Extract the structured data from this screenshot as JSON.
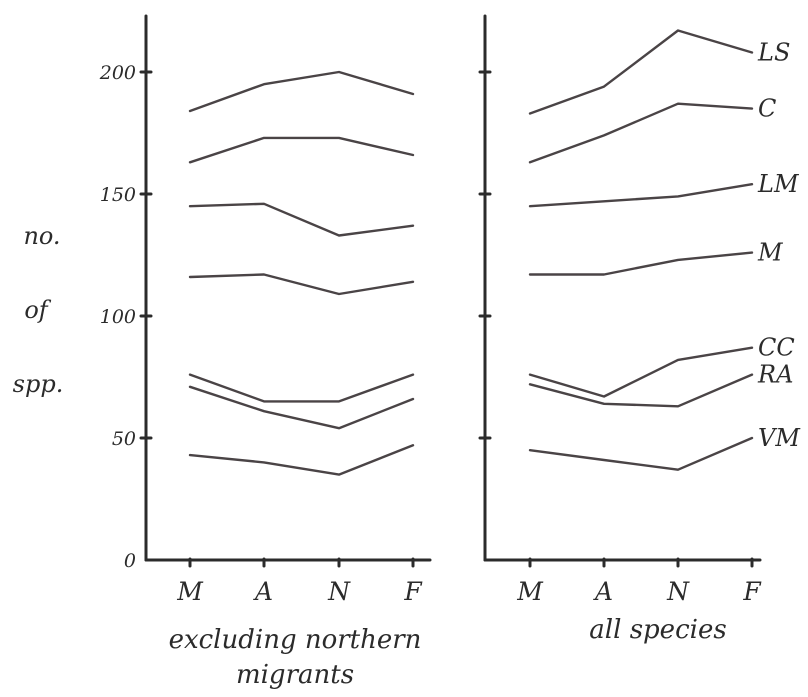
{
  "chart_data": [
    {
      "type": "line",
      "xlabel": "excluding northern migrants",
      "ylabel": "no. of spp.",
      "ylim": [
        0,
        222
      ],
      "yticks": [
        0,
        50,
        100,
        150,
        200
      ],
      "categories": [
        "M",
        "A",
        "N",
        "F"
      ],
      "series": [
        {
          "values": [
            184,
            195,
            200,
            191
          ]
        },
        {
          "values": [
            163,
            173,
            173,
            166
          ]
        },
        {
          "values": [
            145,
            146,
            133,
            137
          ]
        },
        {
          "values": [
            116,
            117,
            109,
            114
          ]
        },
        {
          "values": [
            76,
            65,
            65,
            76
          ]
        },
        {
          "values": [
            71,
            61,
            54,
            66
          ]
        },
        {
          "values": [
            43,
            40,
            35,
            47
          ]
        }
      ]
    },
    {
      "type": "line",
      "xlabel": "all species",
      "ylim": [
        0,
        222
      ],
      "yticks": [
        0,
        50,
        100,
        150,
        200
      ],
      "categories": [
        "M",
        "A",
        "N",
        "F"
      ],
      "series": [
        {
          "name": "LS",
          "values": [
            183,
            194,
            217,
            208
          ]
        },
        {
          "name": "C",
          "values": [
            163,
            174,
            187,
            185
          ]
        },
        {
          "name": "LM",
          "values": [
            145,
            147,
            149,
            154
          ]
        },
        {
          "name": "M",
          "values": [
            117,
            117,
            123,
            126
          ]
        },
        {
          "name": "CC",
          "values": [
            76,
            67,
            82,
            87
          ]
        },
        {
          "name": "RA",
          "values": [
            72,
            64,
            63,
            76
          ]
        },
        {
          "name": "VM",
          "values": [
            45,
            41,
            37,
            50
          ]
        }
      ]
    }
  ],
  "side_label_lines": [
    "no.",
    "of",
    "spp."
  ],
  "colors": {
    "ink": "#2b2b2b",
    "lines": "#4a4446"
  }
}
